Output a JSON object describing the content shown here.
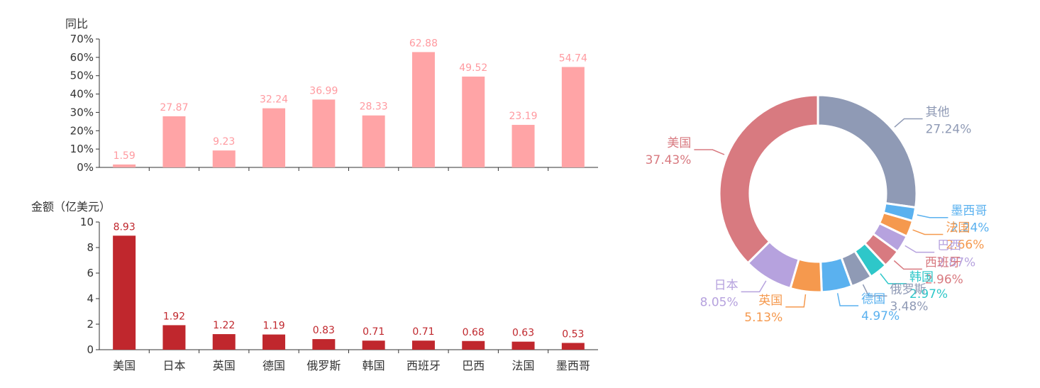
{
  "chart_data": [
    {
      "type": "bar",
      "ylabel": "同比",
      "ylim": [
        0,
        70
      ],
      "yticks": [
        "0%",
        "10%",
        "20%",
        "30%",
        "40%",
        "50%",
        "60%",
        "70%"
      ],
      "categories": [
        "美国",
        "日本",
        "英国",
        "德国",
        "俄罗斯",
        "韩国",
        "西班牙",
        "巴西",
        "法国",
        "墨西哥"
      ],
      "values": [
        1.59,
        27.87,
        9.23,
        32.24,
        36.99,
        28.33,
        62.88,
        49.52,
        23.19,
        54.74
      ],
      "value_labels": [
        "1.59",
        "27.87",
        "9.23",
        "32.24",
        "36.99",
        "28.33",
        "62.88",
        "49.52",
        "23.19",
        "54.74"
      ],
      "color": "#ffa4a6",
      "label_color": "#ff9aa0",
      "grid": false
    },
    {
      "type": "bar",
      "ylabel": "金额（亿美元）",
      "ylim": [
        0,
        10
      ],
      "yticks": [
        "0",
        "2",
        "4",
        "6",
        "8",
        "10"
      ],
      "categories": [
        "美国",
        "日本",
        "英国",
        "德国",
        "俄罗斯",
        "韩国",
        "西班牙",
        "巴西",
        "法国",
        "墨西哥"
      ],
      "values": [
        8.93,
        1.92,
        1.22,
        1.19,
        0.83,
        0.71,
        0.71,
        0.68,
        0.63,
        0.53
      ],
      "value_labels": [
        "8.93",
        "1.92",
        "1.22",
        "1.19",
        "0.83",
        "0.71",
        "0.71",
        "0.68",
        "0.63",
        "0.53"
      ],
      "color": "#c0272d",
      "grid": false
    },
    {
      "type": "pie",
      "donut": true,
      "slices": [
        {
          "name": "其他",
          "value": 27.24,
          "pct": "27.24%",
          "color": "#8f9ab5"
        },
        {
          "name": "墨西哥",
          "value": 2.24,
          "pct": "2.24%",
          "color": "#5ab1ef"
        },
        {
          "name": "法国",
          "value": 2.66,
          "pct": "2.66%",
          "color": "#f5994e"
        },
        {
          "name": "巴西",
          "value": 2.87,
          "pct": "2.87%",
          "color": "#b6a2de"
        },
        {
          "name": "西班牙",
          "value": 2.96,
          "pct": "2.96%",
          "color": "#d87a80"
        },
        {
          "name": "韩国",
          "value": 2.97,
          "pct": "2.97%",
          "color": "#2ec7c9"
        },
        {
          "name": "俄罗斯",
          "value": 3.48,
          "pct": "3.48%",
          "color": "#8f9ab5"
        },
        {
          "name": "德国",
          "value": 4.97,
          "pct": "4.97%",
          "color": "#5ab1ef"
        },
        {
          "name": "英国",
          "value": 5.13,
          "pct": "5.13%",
          "color": "#f5994e"
        },
        {
          "name": "日本",
          "value": 8.05,
          "pct": "8.05%",
          "color": "#b6a2de"
        },
        {
          "name": "美国",
          "value": 37.43,
          "pct": "37.43%",
          "color": "#d87a80"
        }
      ]
    }
  ]
}
